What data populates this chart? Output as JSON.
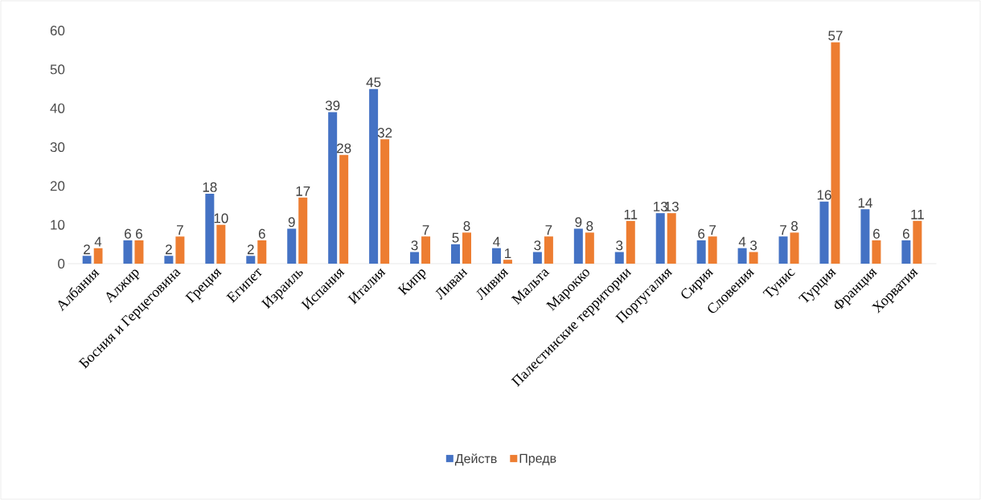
{
  "chart_data": {
    "type": "bar",
    "categories": [
      "Албания",
      "Алжир",
      "Босния и Герцеговина",
      "Греция",
      "Египет",
      "Израиль",
      "Испания",
      "Италия",
      "Кипр",
      "Ливан",
      "Ливия",
      "Мальта",
      "Марокко",
      "Палестинские территории",
      "Португалия",
      "Сирия",
      "Словения",
      "Тунис",
      "Турция",
      "Франция",
      "Хорватия"
    ],
    "series": [
      {
        "name": "Действ",
        "color": "#4472c4",
        "values": [
          2,
          6,
          2,
          18,
          2,
          9,
          39,
          45,
          3,
          5,
          4,
          3,
          9,
          3,
          13,
          6,
          4,
          7,
          16,
          14,
          6
        ]
      },
      {
        "name": "Предв",
        "color": "#ed7d31",
        "values": [
          4,
          6,
          7,
          10,
          6,
          17,
          28,
          32,
          7,
          8,
          1,
          7,
          8,
          11,
          13,
          7,
          3,
          8,
          57,
          6,
          11
        ]
      }
    ],
    "ylim": [
      0,
      60
    ],
    "yticks": [
      0,
      10,
      20,
      30,
      40,
      50,
      60
    ],
    "data_labels": true,
    "legend": "bottom"
  }
}
